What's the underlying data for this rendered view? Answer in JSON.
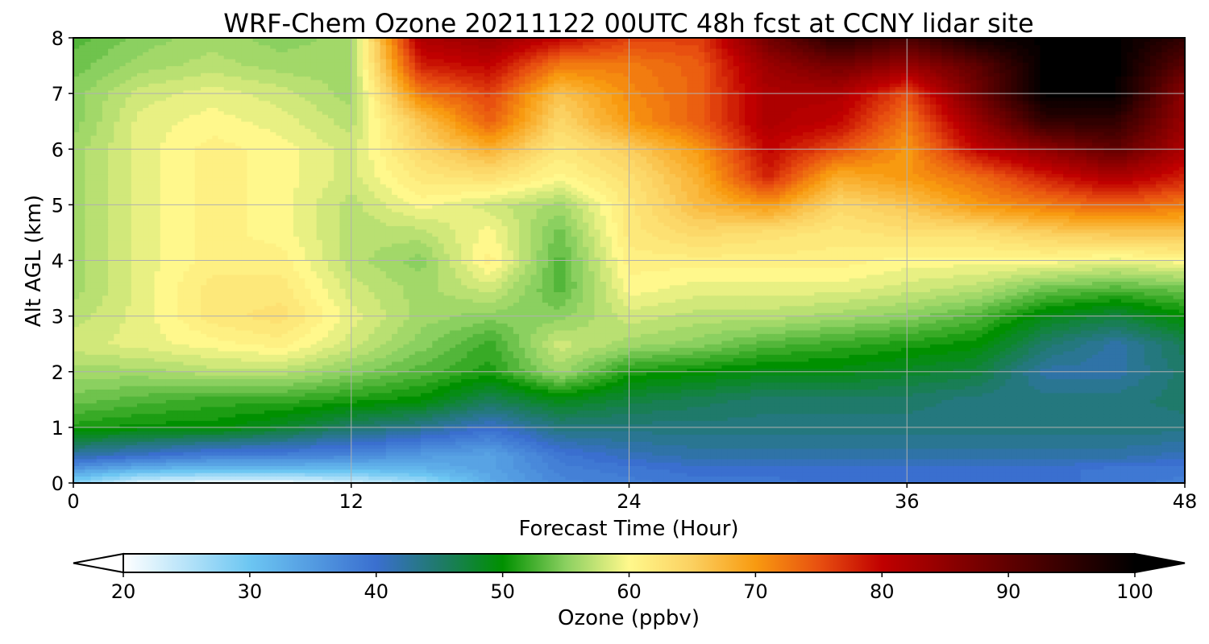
{
  "chart_data": {
    "type": "heatmap",
    "title": "WRF-Chem Ozone  20211122 00UTC 48h fcst at CCNY lidar site",
    "xlabel": "Forecast Time (Hour)",
    "ylabel": "Alt AGL (km)",
    "xlim": [
      0,
      48
    ],
    "ylim": [
      0,
      8
    ],
    "xticks": [
      "0",
      "12",
      "24",
      "36",
      "48"
    ],
    "yticks": [
      "0",
      "1",
      "2",
      "3",
      "4",
      "5",
      "6",
      "7",
      "8"
    ],
    "grid": true,
    "colorbar": {
      "label": "Ozone  (ppbv)",
      "min": 20,
      "max": 100,
      "extend": "both",
      "ticks": [
        "20",
        "30",
        "40",
        "50",
        "60",
        "70",
        "80",
        "90",
        "100"
      ],
      "stops": [
        {
          "v": 20,
          "c": "#ffffff"
        },
        {
          "v": 30,
          "c": "#6cc6f2"
        },
        {
          "v": 40,
          "c": "#3a6fcf"
        },
        {
          "v": 45,
          "c": "#1f7a6a"
        },
        {
          "v": 50,
          "c": "#009000"
        },
        {
          "v": 55,
          "c": "#8bd060"
        },
        {
          "v": 60,
          "c": "#fff88c"
        },
        {
          "v": 65,
          "c": "#fbd060"
        },
        {
          "v": 70,
          "c": "#f89a10"
        },
        {
          "v": 75,
          "c": "#e85010"
        },
        {
          "v": 80,
          "c": "#c00000"
        },
        {
          "v": 90,
          "c": "#600000"
        },
        {
          "v": 100,
          "c": "#000000"
        }
      ]
    },
    "grid_data": {
      "x": [
        0,
        3,
        6,
        9,
        12,
        15,
        18,
        21,
        24,
        27,
        30,
        33,
        36,
        39,
        42,
        45,
        48
      ],
      "y": [
        0,
        0.25,
        0.5,
        1,
        1.5,
        2,
        2.5,
        3,
        3.5,
        4,
        4.5,
        5,
        5.5,
        6,
        6.5,
        7,
        7.5,
        8
      ],
      "z": [
        [
          28,
          22,
          21,
          21,
          23,
          26,
          33,
          37,
          38,
          39,
          39,
          40,
          40,
          40,
          40,
          39,
          38
        ],
        [
          35,
          32,
          31,
          31,
          31,
          32,
          34,
          38,
          39,
          40,
          40,
          40,
          40,
          40,
          40,
          39,
          39
        ],
        [
          42,
          40,
          38,
          38,
          37,
          35,
          34,
          39,
          41,
          42,
          42,
          42,
          42,
          42,
          42,
          42,
          41
        ],
        [
          51,
          50,
          50,
          48,
          45,
          43,
          40,
          44,
          44,
          44,
          44,
          44,
          44,
          44,
          44,
          44,
          44
        ],
        [
          54,
          53,
          52,
          52,
          51,
          50,
          46,
          49,
          47,
          46,
          45,
          45,
          45,
          44,
          44,
          44,
          45
        ],
        [
          56,
          56,
          57,
          57,
          55,
          53,
          51,
          56,
          51,
          50,
          49,
          49,
          48,
          47,
          42,
          42,
          45
        ],
        [
          58,
          59,
          60,
          61,
          58,
          55,
          52,
          58,
          56,
          55,
          53,
          52,
          51,
          50,
          45,
          42,
          46
        ],
        [
          57,
          59,
          62,
          63,
          59,
          56,
          55,
          55,
          58,
          57,
          57,
          56,
          55,
          53,
          49,
          47,
          50
        ],
        [
          56,
          59,
          62,
          62,
          58,
          56,
          58,
          53,
          60,
          59,
          59,
          59,
          58,
          57,
          54,
          53,
          54
        ],
        [
          56,
          59,
          61,
          61,
          57,
          55,
          61,
          53,
          61,
          61,
          61,
          61,
          60,
          60,
          60,
          59,
          60
        ],
        [
          56,
          59,
          61,
          60,
          57,
          57,
          60,
          54,
          62,
          64,
          63,
          62,
          63,
          63,
          65,
          66,
          66
        ],
        [
          56,
          59,
          61,
          60,
          57,
          60,
          58,
          56,
          62,
          67,
          70,
          64,
          66,
          70,
          72,
          74,
          72
        ],
        [
          56,
          59,
          61,
          60,
          58,
          62,
          63,
          60,
          63,
          68,
          78,
          68,
          70,
          73,
          78,
          82,
          78
        ],
        [
          56,
          59,
          61,
          60,
          58,
          64,
          68,
          62,
          65,
          70,
          80,
          75,
          70,
          80,
          85,
          90,
          82
        ],
        [
          55,
          59,
          60,
          59,
          57,
          66,
          74,
          64,
          70,
          74,
          82,
          80,
          72,
          84,
          95,
          95,
          84
        ],
        [
          55,
          58,
          59,
          58,
          56,
          72,
          76,
          66,
          71,
          74,
          82,
          82,
          75,
          88,
          100,
          100,
          85
        ],
        [
          54,
          56,
          57,
          56,
          56,
          78,
          80,
          72,
          72,
          74,
          84,
          88,
          84,
          90,
          100,
          100,
          90
        ],
        [
          53,
          55,
          56,
          55,
          56,
          82,
          84,
          80,
          76,
          76,
          88,
          96,
          92,
          98,
          100,
          100,
          95
        ]
      ]
    }
  }
}
